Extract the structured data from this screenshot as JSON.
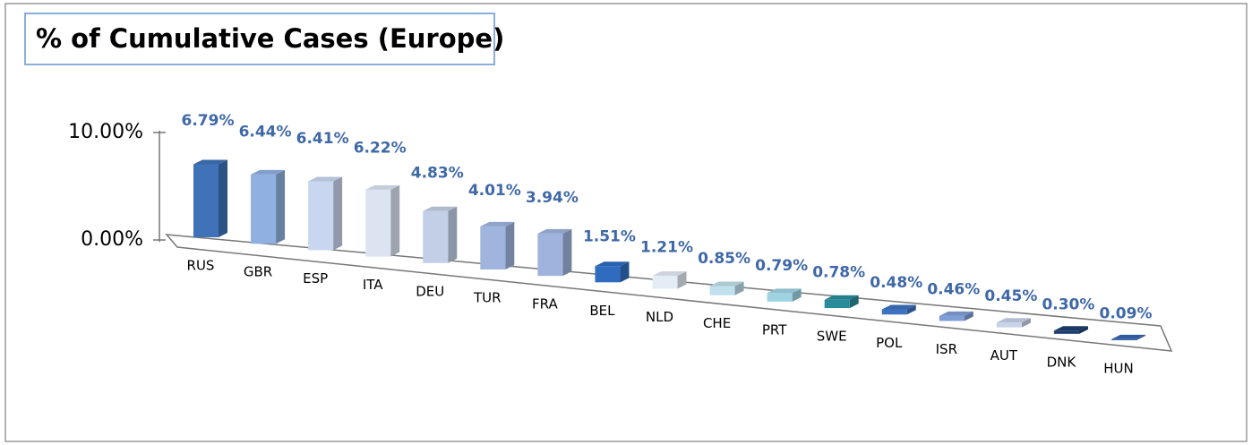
{
  "chart_data": {
    "type": "bar3d",
    "title": "% of Cumulative Cases (Europe)",
    "categories": [
      "RUS",
      "GBR",
      "ESP",
      "ITA",
      "DEU",
      "TUR",
      "FRA",
      "BEL",
      "NLD",
      "CHE",
      "PRT",
      "SWE",
      "POL",
      "ISR",
      "AUT",
      "DNK",
      "HUN"
    ],
    "values": [
      6.79,
      6.44,
      6.41,
      6.22,
      4.83,
      4.01,
      3.94,
      1.51,
      1.21,
      0.85,
      0.79,
      0.78,
      0.48,
      0.46,
      0.45,
      0.3,
      0.09
    ],
    "value_labels": [
      "6.79%",
      "6.44%",
      "6.41%",
      "6.22%",
      "4.83%",
      "4.01%",
      "3.94%",
      "1.51%",
      "1.21%",
      "0.85%",
      "0.79%",
      "0.78%",
      "0.48%",
      "0.46%",
      "0.45%",
      "0.30%",
      "0.09%"
    ],
    "colors": [
      "#3f72b8",
      "#8fb0e0",
      "#c8d6ef",
      "#dce4f2",
      "#c3cfe6",
      "#9fb5de",
      "#9fb3dc",
      "#2f6cc0",
      "#e4ecf5",
      "#bfe0ec",
      "#9fd3e3",
      "#2a8c9a",
      "#3f72c0",
      "#7f9dd6",
      "#c8d3ea",
      "#1f3e70",
      "#3a64b0"
    ],
    "ylim": [
      0,
      10
    ],
    "yticks": [
      {
        "value": 0,
        "label": "0.00%"
      },
      {
        "value": 10,
        "label": "10.00%"
      }
    ]
  }
}
